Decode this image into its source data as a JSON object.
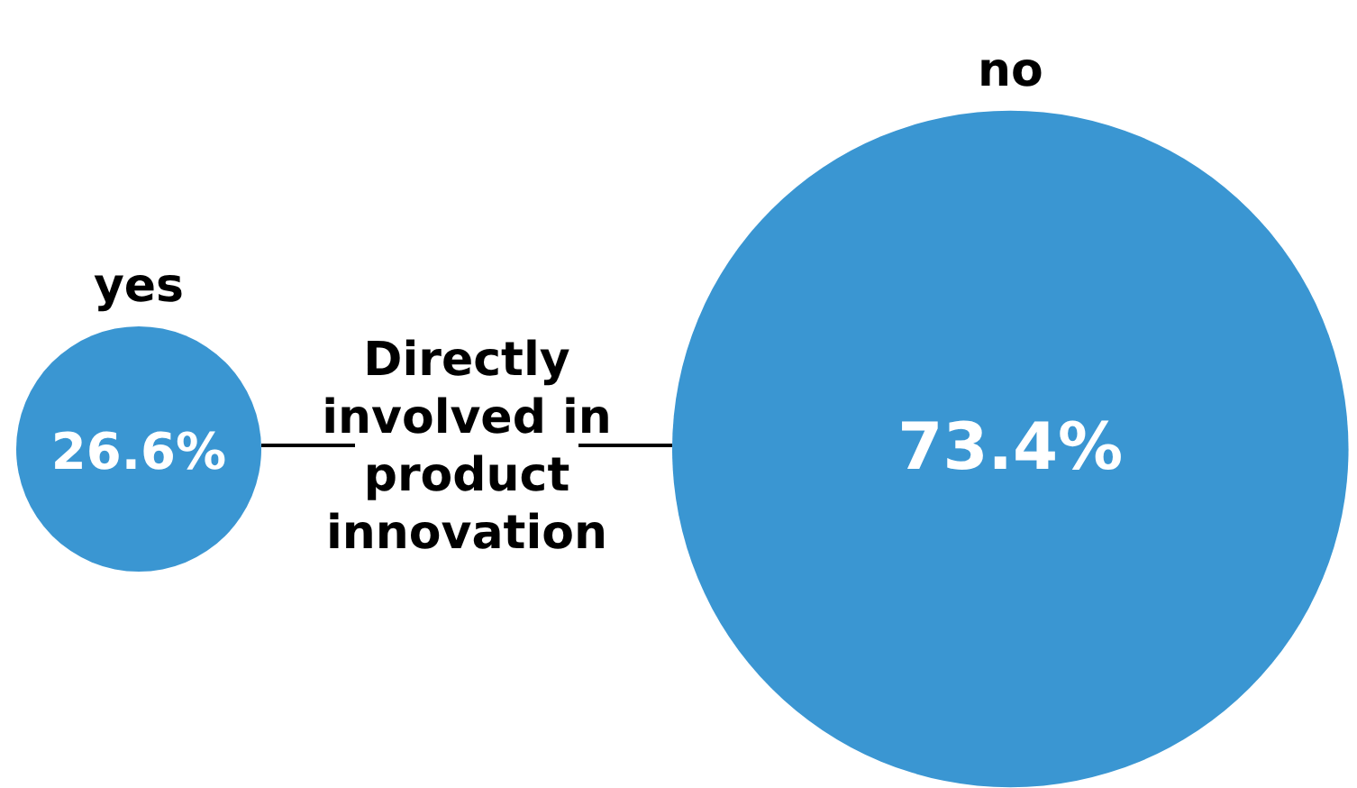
{
  "chart_data": {
    "type": "other",
    "title": "Directly involved in product innovation",
    "categories": [
      "yes",
      "no"
    ],
    "values": [
      26.6,
      73.4
    ],
    "value_labels": [
      "26.6%",
      "73.4%"
    ],
    "color": "#3a96d2"
  }
}
